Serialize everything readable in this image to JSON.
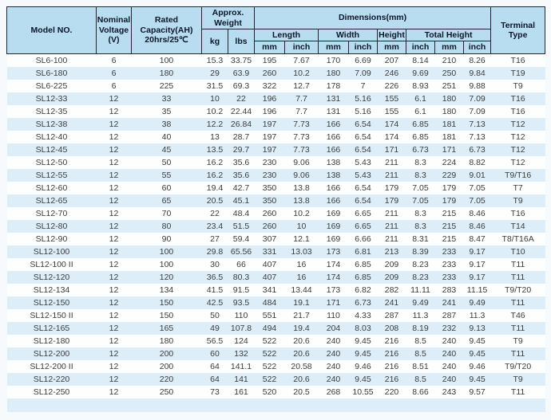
{
  "colors": {
    "header_bg": "#b8ddf1",
    "stripe_bg": "#ddeef8",
    "border": "#23272f",
    "header_text": "#0c1626",
    "cell_text": "#3c3c3c"
  },
  "table": {
    "header": {
      "model_no": "Model NO.",
      "nominal_voltage": "Nominal\nVoltage\n(V)",
      "rated_capacity": "Rated\nCapacity(AH)\n20hrs/25℃",
      "approx_weight": "Approx.\nWeight",
      "kg": "kg",
      "lbs": "lbs",
      "dimensions": "Dimensions(mm)",
      "length": "Length",
      "width": "Width",
      "height": "Height",
      "total_height": "Total Height",
      "mm": "mm",
      "inch": "inch",
      "terminal_type": "Terminal\nType"
    },
    "rows": [
      [
        "SL6-100",
        "6",
        "100",
        "15.3",
        "33.75",
        "195",
        "7.67",
        "170",
        "6.69",
        "207",
        "8.14",
        "210",
        "8.26",
        "T16"
      ],
      [
        "SL6-180",
        "6",
        "180",
        "29",
        "63.9",
        "260",
        "10.2",
        "180",
        "7.09",
        "246",
        "9.69",
        "250",
        "9.84",
        "T19"
      ],
      [
        "SL6-225",
        "6",
        "225",
        "31.5",
        "69.3",
        "322",
        "12.7",
        "178",
        "7",
        "226",
        "8.93",
        "251",
        "9.88",
        "T9"
      ],
      [
        "SL12-33",
        "12",
        "33",
        "10",
        "22",
        "196",
        "7.7",
        "131",
        "5.16",
        "155",
        "6.1",
        "180",
        "7.09",
        "T16"
      ],
      [
        "SL12-35",
        "12",
        "35",
        "10.2",
        "22.44",
        "196",
        "7.7",
        "131",
        "5.16",
        "155",
        "6.1",
        "180",
        "7.09",
        "T16"
      ],
      [
        "SL12-38",
        "12",
        "38",
        "12.2",
        "26.84",
        "197",
        "7.73",
        "166",
        "6.54",
        "174",
        "6.85",
        "181",
        "7.13",
        "T12"
      ],
      [
        "SL12-40",
        "12",
        "40",
        "13",
        "28.7",
        "197",
        "7.73",
        "166",
        "6.54",
        "174",
        "6.85",
        "181",
        "7.13",
        "T12"
      ],
      [
        "SL12-45",
        "12",
        "45",
        "13.5",
        "29.7",
        "197",
        "7.73",
        "166",
        "6.54",
        "171",
        "6.73",
        "171",
        "6.73",
        "T12"
      ],
      [
        "SL12-50",
        "12",
        "50",
        "16.2",
        "35.6",
        "230",
        "9.06",
        "138",
        "5.43",
        "211",
        "8.3",
        "224",
        "8.82",
        "T12"
      ],
      [
        "SL12-55",
        "12",
        "55",
        "16.2",
        "35.6",
        "230",
        "9.06",
        "138",
        "5.43",
        "211",
        "8.3",
        "229",
        "9.01",
        "T9/T16"
      ],
      [
        "SL12-60",
        "12",
        "60",
        "19.4",
        "42.7",
        "350",
        "13.8",
        "166",
        "6.54",
        "179",
        "7.05",
        "179",
        "7.05",
        "T7"
      ],
      [
        "SL12-65",
        "12",
        "65",
        "20.5",
        "45.1",
        "350",
        "13.8",
        "166",
        "6.54",
        "179",
        "7.05",
        "179",
        "7.05",
        "T9"
      ],
      [
        "SL12-70",
        "12",
        "70",
        "22",
        "48.4",
        "260",
        "10.2",
        "169",
        "6.65",
        "211",
        "8.3",
        "215",
        "8.46",
        "T16"
      ],
      [
        "SL12-80",
        "12",
        "80",
        "23.4",
        "51.5",
        "260",
        "10",
        "169",
        "6.65",
        "211",
        "8.3",
        "215",
        "8.46",
        "T14"
      ],
      [
        "SL12-90",
        "12",
        "90",
        "27",
        "59.4",
        "307",
        "12.1",
        "169",
        "6.66",
        "211",
        "8.31",
        "215",
        "8.47",
        "T8/T16A"
      ],
      [
        "SL12-100",
        "12",
        "100",
        "29.8",
        "65.56",
        "331",
        "13.03",
        "173",
        "6.81",
        "213",
        "8.39",
        "233",
        "9.17",
        "T10"
      ],
      [
        "SL12-100 II",
        "12",
        "100",
        "30",
        "66",
        "407",
        "16",
        "174",
        "6.85",
        "209",
        "8.23",
        "233",
        "9.17",
        "T11"
      ],
      [
        "SL12-120",
        "12",
        "120",
        "36.5",
        "80.3",
        "407",
        "16",
        "174",
        "6.85",
        "209",
        "8.23",
        "233",
        "9.17",
        "T11"
      ],
      [
        "SL12-134",
        "12",
        "134",
        "41.5",
        "91.5",
        "341",
        "13.44",
        "173",
        "6.82",
        "282",
        "11.11",
        "283",
        "11.15",
        "T9/T20"
      ],
      [
        "SL12-150",
        "12",
        "150",
        "42.5",
        "93.5",
        "484",
        "19.1",
        "171",
        "6.73",
        "241",
        "9.49",
        "241",
        "9.49",
        "T11"
      ],
      [
        "SL12-150 II",
        "12",
        "150",
        "50",
        "110",
        "551",
        "21.7",
        "110",
        "4.33",
        "287",
        "11.3",
        "287",
        "11.3",
        "T46"
      ],
      [
        "SL12-165",
        "12",
        "165",
        "49",
        "107.8",
        "494",
        "19.4",
        "204",
        "8.03",
        "208",
        "8.19",
        "232",
        "9.13",
        "T11"
      ],
      [
        "SL12-180",
        "12",
        "180",
        "56.5",
        "124",
        "522",
        "20.6",
        "240",
        "9.45",
        "216",
        "8.5",
        "240",
        "9.45",
        "T9"
      ],
      [
        "SL12-200",
        "12",
        "200",
        "60",
        "132",
        "522",
        "20.6",
        "240",
        "9.45",
        "216",
        "8.5",
        "240",
        "9.45",
        "T11"
      ],
      [
        "SL12-200 II",
        "12",
        "200",
        "64",
        "141.1",
        "522",
        "20.58",
        "240",
        "9.46",
        "216",
        "8.51",
        "240",
        "9.46",
        "T9/T20"
      ],
      [
        "SL12-220",
        "12",
        "220",
        "64",
        "141",
        "522",
        "20.6",
        "240",
        "9.45",
        "216",
        "8.5",
        "240",
        "9.45",
        "T9"
      ],
      [
        "SL12-250",
        "12",
        "250",
        "73",
        "161",
        "520",
        "20.5",
        "268",
        "10.55",
        "220",
        "8.66",
        "243",
        "9.57",
        "T11"
      ]
    ]
  }
}
